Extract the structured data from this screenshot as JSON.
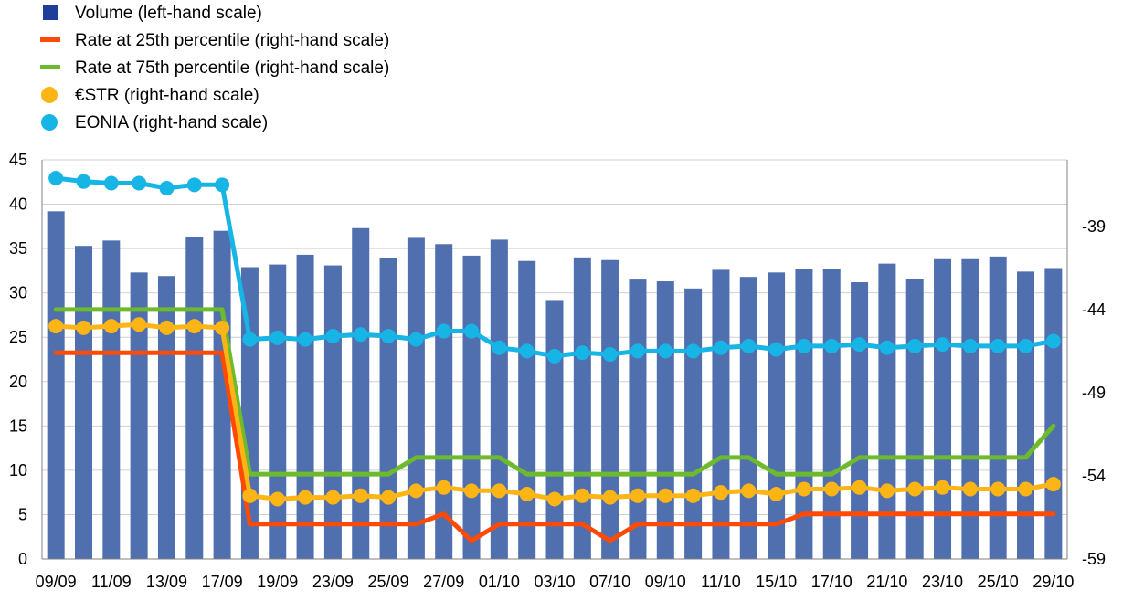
{
  "colors": {
    "volume": "#4F6FAF",
    "volume_legend": "#1F3E9A",
    "p25": "#FF4A06",
    "p75": "#6DBB2C",
    "estr": "#FDB515",
    "eonia": "#17B4E6",
    "grid": "#D0D0D0",
    "axis": "#808080"
  },
  "legend": [
    {
      "label": "Volume (left-hand scale)",
      "kind": "square",
      "color_key": "volume_legend"
    },
    {
      "label": "Rate at 25th percentile (right-hand scale)",
      "kind": "line",
      "color_key": "p25"
    },
    {
      "label": "Rate at 75th percentile (right-hand scale)",
      "kind": "line",
      "color_key": "p75"
    },
    {
      "label": "€STR (right-hand scale)",
      "kind": "dot",
      "color_key": "estr"
    },
    {
      "label": "EONIA (right-hand scale)",
      "kind": "dot",
      "color_key": "eonia"
    }
  ],
  "chart_data": {
    "type": "bar",
    "title": "",
    "xlabel": "",
    "ylabel": "",
    "ylim": [
      0,
      45
    ],
    "yticks": [
      0,
      5,
      10,
      15,
      20,
      25,
      30,
      35,
      40,
      45
    ],
    "y2lim": [
      -59,
      -35
    ],
    "y2ticks": [
      -59,
      -54,
      -49,
      -44,
      -39
    ],
    "grid": true,
    "legend_position": "top-left",
    "n_points": 37,
    "x_tick_labels": [
      "09/09",
      "11/09",
      "13/09",
      "17/09",
      "19/09",
      "23/09",
      "25/09",
      "27/09",
      "01/10",
      "03/10",
      "07/10",
      "09/10",
      "11/10",
      "15/10",
      "17/10",
      "21/10",
      "23/10",
      "25/10",
      "29/10"
    ],
    "series": [
      {
        "name": "Volume (left-hand scale)",
        "type": "bar",
        "axis": "left",
        "values": [
          39.2,
          35.3,
          35.9,
          32.3,
          31.9,
          36.3,
          37.0,
          32.9,
          33.2,
          34.3,
          33.1,
          37.3,
          33.9,
          36.2,
          35.5,
          34.2,
          36.0,
          33.6,
          29.2,
          34.0,
          33.7,
          31.5,
          31.3,
          30.5,
          32.6,
          31.8,
          32.3,
          32.7,
          32.7,
          31.2,
          33.3,
          31.6,
          33.8,
          33.8,
          34.1,
          32.4,
          32.8
        ]
      },
      {
        "name": "Rate at 25th percentile (right-hand scale)",
        "type": "line",
        "axis": "right",
        "values": [
          -46.6,
          -46.6,
          -46.6,
          -46.6,
          -46.6,
          -46.6,
          -46.6,
          -56.9,
          -56.9,
          -56.9,
          -56.9,
          -56.9,
          -56.9,
          -56.9,
          -56.3,
          -57.9,
          -56.9,
          -56.9,
          -56.9,
          -56.9,
          -57.9,
          -56.9,
          -56.9,
          -56.9,
          -56.9,
          -56.9,
          -56.9,
          -56.3,
          -56.3,
          -56.3,
          -56.3,
          -56.3,
          -56.3,
          -56.3,
          -56.3,
          -56.3,
          -56.3
        ]
      },
      {
        "name": "Rate at 75th percentile (right-hand scale)",
        "type": "line",
        "axis": "right",
        "values": [
          -44.0,
          -44.0,
          -44.0,
          -44.0,
          -44.0,
          -44.0,
          -44.0,
          -53.9,
          -53.9,
          -53.9,
          -53.9,
          -53.9,
          -53.9,
          -52.9,
          -52.9,
          -52.9,
          -52.9,
          -53.9,
          -53.9,
          -53.9,
          -53.9,
          -53.9,
          -53.9,
          -53.9,
          -52.9,
          -52.9,
          -53.9,
          -53.9,
          -53.9,
          -52.9,
          -52.9,
          -52.9,
          -52.9,
          -52.9,
          -52.9,
          -52.9,
          -51.0
        ]
      },
      {
        "name": "€STR (right-hand scale)",
        "type": "line-marker",
        "axis": "right",
        "values": [
          -45.0,
          -45.1,
          -45.0,
          -44.9,
          -45.1,
          -45.0,
          -45.1,
          -55.2,
          -55.4,
          -55.3,
          -55.3,
          -55.2,
          -55.3,
          -54.9,
          -54.7,
          -54.9,
          -54.9,
          -55.1,
          -55.4,
          -55.2,
          -55.3,
          -55.2,
          -55.2,
          -55.2,
          -55.0,
          -54.9,
          -55.1,
          -54.8,
          -54.8,
          -54.7,
          -54.9,
          -54.8,
          -54.7,
          -54.8,
          -54.8,
          -54.8,
          -54.5
        ]
      },
      {
        "name": "EONIA (right-hand scale)",
        "type": "line-marker",
        "axis": "right",
        "values": [
          -36.1,
          -36.3,
          -36.4,
          -36.4,
          -36.7,
          -36.5,
          -36.5,
          -45.8,
          -45.7,
          -45.8,
          -45.6,
          -45.5,
          -45.6,
          -45.8,
          -45.3,
          -45.3,
          -46.3,
          -46.5,
          -46.8,
          -46.6,
          -46.7,
          -46.5,
          -46.5,
          -46.5,
          -46.3,
          -46.2,
          -46.4,
          -46.2,
          -46.2,
          -46.1,
          -46.3,
          -46.2,
          -46.1,
          -46.2,
          -46.2,
          -46.2,
          -45.9
        ]
      }
    ]
  }
}
